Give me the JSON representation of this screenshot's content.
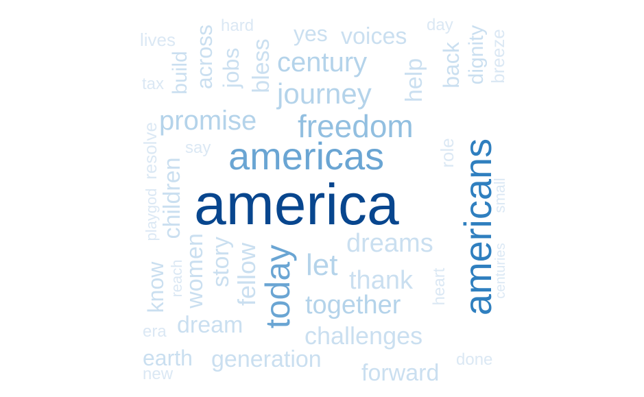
{
  "words": {
    "america": "america",
    "americas": "americas",
    "americans": "americans",
    "freedom": "freedom",
    "today": "today",
    "journey": "journey",
    "century": "century",
    "promise": "promise",
    "let": "let",
    "together": "together",
    "dreams": "dreams",
    "thank": "thank",
    "challenges": "challenges",
    "generation": "generation",
    "forward": "forward",
    "dream": "dream",
    "children": "children",
    "women": "women",
    "story": "story",
    "fellow": "fellow",
    "bless": "bless",
    "jobs": "jobs",
    "across": "across",
    "build": "build",
    "help": "help",
    "back": "back",
    "dignity": "dignity",
    "yes": "yes",
    "voices": "voices",
    "hard": "hard",
    "day": "day",
    "lives": "lives",
    "tax": "tax",
    "resolve": "resolve",
    "say": "say",
    "role": "role",
    "breeze": "breeze",
    "small": "small",
    "centuries": "centuries",
    "heart": "heart",
    "playgod": "playgod",
    "reach": "reach",
    "know": "know",
    "era": "era",
    "earth": "earth",
    "new": "new",
    "done": "done"
  },
  "colors": {
    "darkest": "#08468e",
    "dark": "#2f7fbf",
    "medium": "#6aa5d3",
    "medium_light": "#92bfe0",
    "light": "#b4d3ea",
    "lighter": "#cadff0",
    "lightest": "#dbe8f4"
  }
}
